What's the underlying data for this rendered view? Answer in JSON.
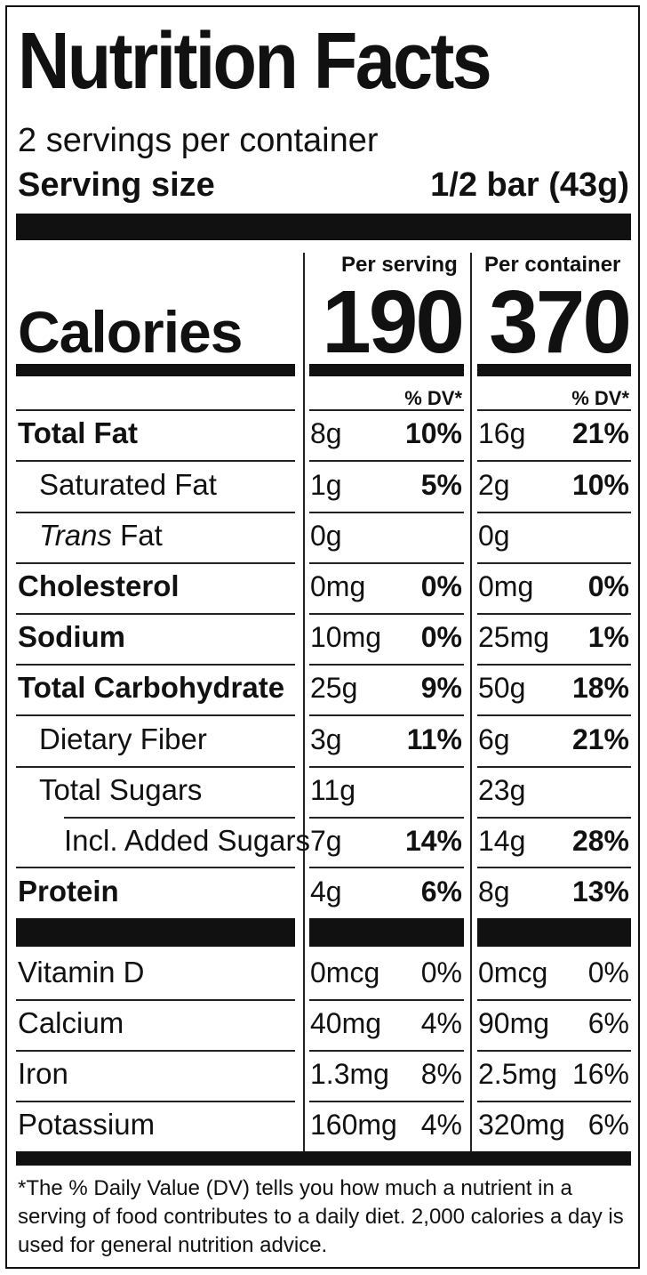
{
  "header": {
    "title": "Nutrition Facts",
    "servings_per_container": "2 servings per container",
    "serving_size_label": "Serving size",
    "serving_size_value": "1/2 bar (43g)"
  },
  "columns": {
    "per_serving": "Per serving",
    "per_container": "Per container",
    "dv_label": "% DV*"
  },
  "calories": {
    "label": "Calories",
    "per_serving": "190",
    "per_container": "370"
  },
  "nutrients": [
    {
      "label": "Total Fat",
      "serving_amount": "8g",
      "serving_dv": "10%",
      "container_amount": "16g",
      "container_dv": "21%"
    },
    {
      "label": "Saturated Fat",
      "serving_amount": "1g",
      "serving_dv": "5%",
      "container_amount": "2g",
      "container_dv": "10%"
    },
    {
      "label_italic": "Trans",
      "label": " Fat",
      "serving_amount": "0g",
      "serving_dv": "",
      "container_amount": "0g",
      "container_dv": ""
    },
    {
      "label": "Cholesterol",
      "serving_amount": "0mg",
      "serving_dv": "0%",
      "container_amount": "0mg",
      "container_dv": "0%"
    },
    {
      "label": "Sodium",
      "serving_amount": "10mg",
      "serving_dv": "0%",
      "container_amount": "25mg",
      "container_dv": "1%"
    },
    {
      "label": "Total Carbohydrate",
      "serving_amount": "25g",
      "serving_dv": "9%",
      "container_amount": "50g",
      "container_dv": "18%"
    },
    {
      "label": "Dietary Fiber",
      "serving_amount": "3g",
      "serving_dv": "11%",
      "container_amount": "6g",
      "container_dv": "21%"
    },
    {
      "label": "Total Sugars",
      "serving_amount": "11g",
      "serving_dv": "",
      "container_amount": "23g",
      "container_dv": ""
    },
    {
      "label": "Incl. Added Sugars",
      "serving_amount": "7g",
      "serving_dv": "14%",
      "container_amount": "14g",
      "container_dv": "28%"
    },
    {
      "label": "Protein",
      "serving_amount": "4g",
      "serving_dv": "6%",
      "container_amount": "8g",
      "container_dv": "13%"
    }
  ],
  "vitamins": [
    {
      "label": "Vitamin D",
      "serving_amount": "0mcg",
      "serving_dv": "0%",
      "container_amount": "0mcg",
      "container_dv": "0%"
    },
    {
      "label": "Calcium",
      "serving_amount": "40mg",
      "serving_dv": "4%",
      "container_amount": "90mg",
      "container_dv": "6%"
    },
    {
      "label": "Iron",
      "serving_amount": "1.3mg",
      "serving_dv": "8%",
      "container_amount": "2.5mg",
      "container_dv": "16%"
    },
    {
      "label": "Potassium",
      "serving_amount": "160mg",
      "serving_dv": "4%",
      "container_amount": "320mg",
      "container_dv": "6%"
    }
  ],
  "footnote": "*The % Daily Value (DV) tells you how much a nutrient in a serving of food contributes to a daily diet. 2,000 calories a day is used for general nutrition advice."
}
